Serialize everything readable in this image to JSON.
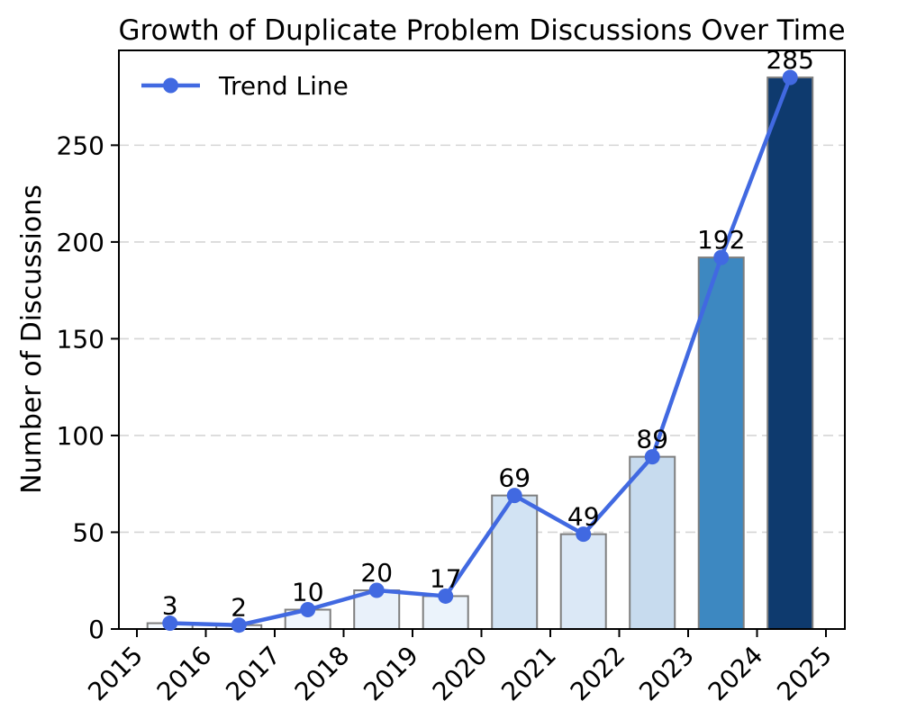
{
  "title": "Growth of Duplicate Problem Discussions Over Time",
  "legend": {
    "label": "Trend Line",
    "position": "upper left"
  },
  "axes": {
    "ylabel": "Number of Discussions",
    "xlabel": ""
  },
  "chart_data": {
    "type": "bar",
    "title": "Growth of Duplicate Problem Discussions Over Time",
    "categories": [
      "2015",
      "2016",
      "2017",
      "2018",
      "2019",
      "2020",
      "2021",
      "2022",
      "2023",
      "2024"
    ],
    "values": [
      3,
      2,
      10,
      20,
      17,
      69,
      49,
      89,
      192,
      285
    ],
    "value_labels": [
      "3",
      "2",
      "10",
      "20",
      "17",
      "69",
      "49",
      "89",
      "192",
      "285"
    ],
    "series": [
      {
        "name": "Trend Line",
        "type": "line",
        "values": [
          3,
          2,
          10,
          20,
          17,
          69,
          49,
          89,
          192,
          285
        ]
      }
    ],
    "xlabel": "",
    "ylabel": "Number of Discussions",
    "xticks": [
      "2015",
      "2016",
      "2017",
      "2018",
      "2019",
      "2020",
      "2021",
      "2022",
      "2023",
      "2024",
      "2025"
    ],
    "yticks": [
      0,
      50,
      100,
      150,
      200,
      250
    ],
    "ylim": [
      0,
      299
    ],
    "grid": "horizontal dashed",
    "legend_position": "upper left",
    "colors": {
      "bar_fills": [
        "#f5fafe",
        "#f7fbff",
        "#f0f6fd",
        "#e9f1fa",
        "#ebf3fb",
        "#d2e3f3",
        "#dbe8f6",
        "#c7dbee",
        "#3d88c1",
        "#0e3a6e"
      ],
      "bar_edge": "#7f7f7f",
      "trend_line": "#4169e1",
      "grid_line": "#d5d5d5",
      "axis": "#000000",
      "text": "#000000",
      "background": "#ffffff"
    }
  }
}
